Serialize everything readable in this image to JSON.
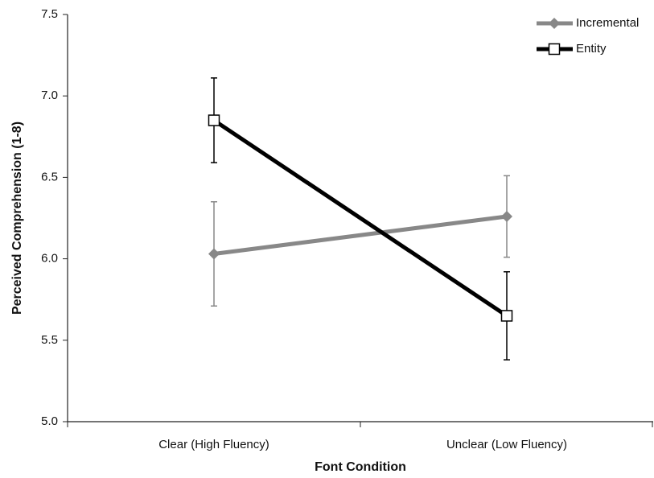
{
  "chart_data": {
    "type": "line",
    "x_label": "Font Condition",
    "y_label": "Perceived Comprehension (1-8)",
    "categories": [
      "Clear  (High Fluency)",
      "Unclear  (Low Fluency)"
    ],
    "series": [
      {
        "name": "Incremental",
        "color": "#888888",
        "marker": "diamond",
        "values": [
          6.03,
          6.26
        ],
        "errors": [
          0.32,
          0.25
        ]
      },
      {
        "name": "Entity",
        "color": "#000000",
        "marker": "square",
        "values": [
          6.85,
          5.65
        ],
        "errors": [
          0.26,
          0.27
        ]
      }
    ],
    "ylim": [
      5.0,
      7.5
    ],
    "yticks": [
      {
        "value": 5.0,
        "label": "5.0"
      },
      5.5,
      {
        "value": 6.0,
        "label": "6.0"
      },
      6.5,
      {
        "value": 7.0,
        "label": "7.0"
      },
      7.5
    ],
    "legend": "upper right",
    "grid": false
  }
}
